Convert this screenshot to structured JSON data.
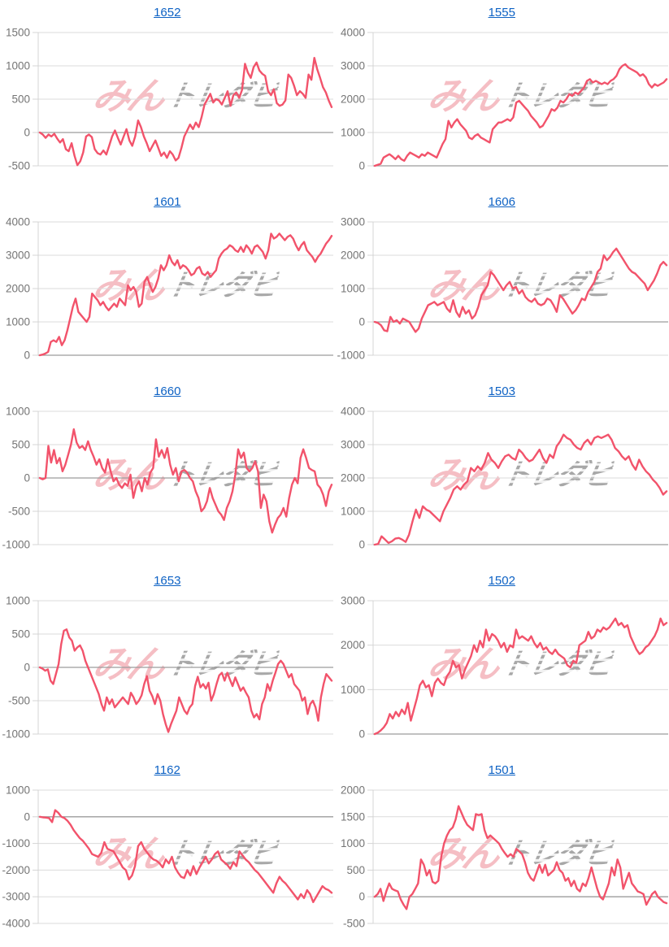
{
  "page": {
    "background": "#ffffff"
  },
  "colors": {
    "series_line": "#F2536B",
    "title_link": "#0E62C4",
    "tick_label": "#757575",
    "gridline": "#DBDBDB",
    "zero_line": "#9C9C9C",
    "axis_line": "#D4D4D4",
    "watermark_pink": "rgba(231,92,108,0.40)",
    "watermark_gray": "#8A8A8A"
  },
  "watermark": {
    "pink_text": "みん",
    "gray_text": "トレダビ"
  },
  "chart_data": [
    {
      "id": "1652",
      "type": "line",
      "title": "1652",
      "ylim": [
        -500,
        1500
      ],
      "yticks": [
        1500,
        1000,
        500,
        0,
        -500
      ],
      "grid": true,
      "legend": "none",
      "x_tick_labels": "none",
      "values": [
        0,
        -30,
        -80,
        -30,
        -60,
        -20,
        -90,
        -150,
        -100,
        -250,
        -280,
        -160,
        -350,
        -490,
        -430,
        -300,
        -60,
        -30,
        -70,
        -250,
        -310,
        -330,
        -270,
        -330,
        -200,
        -60,
        30,
        -80,
        -180,
        -60,
        50,
        -120,
        -200,
        -60,
        180,
        80,
        -60,
        -160,
        -280,
        -200,
        -120,
        -230,
        -350,
        -300,
        -380,
        -280,
        -330,
        -420,
        -380,
        -230,
        -60,
        30,
        120,
        50,
        150,
        80,
        230,
        420,
        500,
        580,
        450,
        500,
        480,
        420,
        520,
        620,
        400,
        560,
        600,
        520,
        640,
        1030,
        900,
        820,
        980,
        1050,
        930,
        880,
        850,
        620,
        560,
        650,
        440,
        400,
        420,
        480,
        870,
        820,
        700,
        560,
        620,
        580,
        520,
        870,
        790,
        1120,
        950,
        820,
        680,
        600,
        480,
        380
      ]
    },
    {
      "id": "1555",
      "type": "line",
      "title": "1555",
      "ylim": [
        0,
        4000
      ],
      "yticks": [
        4000,
        3000,
        2000,
        1000,
        0
      ],
      "grid": true,
      "legend": "none",
      "x_tick_labels": "none",
      "values": [
        0,
        30,
        60,
        250,
        300,
        350,
        280,
        200,
        300,
        200,
        150,
        300,
        400,
        350,
        300,
        250,
        350,
        300,
        400,
        350,
        300,
        250,
        450,
        650,
        800,
        1350,
        1150,
        1300,
        1400,
        1250,
        1150,
        1050,
        850,
        800,
        900,
        950,
        850,
        800,
        750,
        700,
        1100,
        1200,
        1300,
        1300,
        1350,
        1400,
        1350,
        1450,
        1900,
        1950,
        1850,
        1750,
        1650,
        1500,
        1400,
        1300,
        1150,
        1200,
        1350,
        1500,
        1700,
        1650,
        1750,
        1950,
        1900,
        2000,
        2150,
        2100,
        2200,
        2150,
        2250,
        2350,
        2550,
        2600,
        2500,
        2550,
        2500,
        2450,
        2500,
        2450,
        2550,
        2600,
        2700,
        2900,
        3000,
        3050,
        2950,
        2900,
        2850,
        2800,
        2700,
        2750,
        2650,
        2450,
        2350,
        2450,
        2400,
        2450,
        2500,
        2600
      ]
    },
    {
      "id": "1601",
      "type": "line",
      "title": "1601",
      "ylim": [
        0,
        4000
      ],
      "yticks": [
        4000,
        3000,
        2000,
        1000,
        0
      ],
      "grid": true,
      "legend": "none",
      "x_tick_labels": "none",
      "values": [
        0,
        20,
        50,
        100,
        400,
        450,
        400,
        550,
        300,
        450,
        750,
        1100,
        1450,
        1700,
        1300,
        1200,
        1100,
        1000,
        1150,
        1850,
        1750,
        1650,
        1500,
        1600,
        1450,
        1350,
        1450,
        1550,
        1450,
        1700,
        1600,
        1500,
        2100,
        1950,
        2050,
        1900,
        1450,
        1550,
        2200,
        2350,
        2100,
        1900,
        2050,
        2300,
        2700,
        2550,
        2700,
        3000,
        2800,
        2700,
        2850,
        2600,
        2700,
        2650,
        2550,
        2400,
        2450,
        2600,
        2650,
        2450,
        2400,
        2500,
        2350,
        2450,
        2550,
        2900,
        3050,
        3150,
        3200,
        3300,
        3250,
        3150,
        3100,
        3250,
        3100,
        3300,
        3200,
        3050,
        3250,
        3300,
        3200,
        3100,
        2900,
        3150,
        3650,
        3500,
        3550,
        3650,
        3550,
        3450,
        3550,
        3600,
        3500,
        3300,
        3150,
        3300,
        3400,
        3150,
        3050,
        2950,
        2800,
        2950,
        3050,
        3200,
        3350,
        3450,
        3580
      ]
    },
    {
      "id": "1606",
      "type": "line",
      "title": "1606",
      "ylim": [
        -1000,
        3000
      ],
      "yticks": [
        3000,
        2000,
        1000,
        0,
        -1000
      ],
      "grid": true,
      "legend": "none",
      "x_tick_labels": "none",
      "values": [
        0,
        -30,
        -100,
        -250,
        -280,
        150,
        0,
        50,
        -50,
        100,
        50,
        0,
        -150,
        -300,
        -200,
        100,
        300,
        500,
        550,
        600,
        500,
        550,
        600,
        400,
        300,
        650,
        300,
        150,
        450,
        250,
        350,
        100,
        200,
        450,
        800,
        950,
        1100,
        1500,
        1400,
        1250,
        1100,
        950,
        1100,
        1200,
        1000,
        1050,
        850,
        950,
        750,
        650,
        600,
        700,
        550,
        500,
        550,
        700,
        650,
        500,
        300,
        800,
        700,
        550,
        400,
        250,
        350,
        500,
        700,
        650,
        900,
        1050,
        1200,
        1500,
        1600,
        2000,
        1850,
        1950,
        2100,
        2200,
        2050,
        1900,
        1750,
        1600,
        1500,
        1450,
        1350,
        1250,
        1150,
        950,
        1100,
        1250,
        1450,
        1700,
        1800,
        1700
      ]
    },
    {
      "id": "1660",
      "type": "line",
      "title": "1660",
      "ylim": [
        -1000,
        1000
      ],
      "yticks": [
        1000,
        500,
        0,
        -500,
        -1000
      ],
      "grid": true,
      "legend": "none",
      "x_tick_labels": "none",
      "values": [
        0,
        -20,
        0,
        480,
        230,
        420,
        220,
        300,
        100,
        200,
        350,
        500,
        730,
        530,
        450,
        480,
        420,
        550,
        420,
        320,
        200,
        280,
        150,
        80,
        280,
        100,
        -50,
        0,
        -100,
        -150,
        -80,
        -120,
        50,
        -300,
        -120,
        -50,
        -200,
        0,
        -100,
        80,
        150,
        580,
        320,
        420,
        300,
        450,
        200,
        50,
        150,
        -50,
        100,
        120,
        80,
        0,
        -50,
        -200,
        -300,
        -500,
        -450,
        -350,
        -150,
        -300,
        -400,
        -500,
        -550,
        -630,
        -450,
        -350,
        -200,
        50,
        430,
        300,
        380,
        150,
        100,
        150,
        250,
        100,
        -450,
        -250,
        -350,
        -650,
        -820,
        -700,
        -600,
        -550,
        -450,
        -580,
        -300,
        -100,
        0,
        -80,
        300,
        430,
        300,
        150,
        120,
        100,
        -100,
        -150,
        -250,
        -420,
        -200,
        -100
      ]
    },
    {
      "id": "1503",
      "type": "line",
      "title": "1503",
      "ylim": [
        0,
        4000
      ],
      "yticks": [
        4000,
        3000,
        2000,
        1000,
        0
      ],
      "grid": true,
      "legend": "none",
      "x_tick_labels": "none",
      "values": [
        0,
        20,
        250,
        150,
        50,
        100,
        180,
        200,
        150,
        80,
        300,
        700,
        1050,
        800,
        1150,
        1050,
        1000,
        900,
        800,
        700,
        1000,
        1200,
        1400,
        1650,
        1750,
        1650,
        1800,
        1900,
        2300,
        2200,
        2350,
        2250,
        2450,
        2750,
        2550,
        2450,
        2300,
        2500,
        2650,
        2700,
        2600,
        2550,
        2850,
        2750,
        2600,
        2500,
        2550,
        2700,
        2850,
        2600,
        2450,
        2700,
        2600,
        2950,
        3100,
        3300,
        3200,
        3150,
        3000,
        2900,
        2850,
        3050,
        3150,
        3000,
        3200,
        3250,
        3200,
        3250,
        3300,
        3150,
        2900,
        2800,
        2650,
        2550,
        2650,
        2400,
        2250,
        2550,
        2350,
        2200,
        2100,
        1950,
        1850,
        1700,
        1500,
        1600
      ]
    },
    {
      "id": "1653",
      "type": "line",
      "title": "1653",
      "ylim": [
        -1000,
        1000
      ],
      "yticks": [
        1000,
        500,
        0,
        -500,
        -1000
      ],
      "grid": true,
      "legend": "none",
      "x_tick_labels": "none",
      "values": [
        0,
        -20,
        -50,
        -30,
        -200,
        -250,
        -100,
        50,
        350,
        550,
        570,
        450,
        400,
        250,
        300,
        330,
        250,
        100,
        0,
        -100,
        -200,
        -300,
        -400,
        -550,
        -650,
        -450,
        -550,
        -480,
        -600,
        -550,
        -500,
        -450,
        -500,
        -550,
        -380,
        -450,
        -550,
        -500,
        -420,
        -250,
        -130,
        -350,
        -430,
        -550,
        -400,
        -500,
        -700,
        -850,
        -970,
        -850,
        -750,
        -650,
        -450,
        -550,
        -650,
        -700,
        -600,
        -550,
        -280,
        -140,
        -300,
        -250,
        -320,
        -230,
        -500,
        -400,
        -250,
        -120,
        -80,
        -200,
        -80,
        -180,
        -280,
        -150,
        -250,
        -350,
        -300,
        -380,
        -450,
        -650,
        -750,
        -700,
        -780,
        -550,
        -450,
        -250,
        -350,
        -200,
        -80,
        50,
        100,
        50,
        -50,
        -150,
        -100,
        -250,
        -300,
        -350,
        -500,
        -450,
        -700,
        -550,
        -500,
        -600,
        -800,
        -450,
        -250,
        -100,
        -150,
        -200
      ]
    },
    {
      "id": "1502",
      "type": "line",
      "title": "1502",
      "ylim": [
        0,
        3000
      ],
      "yticks": [
        3000,
        2000,
        1000,
        0
      ],
      "grid": true,
      "legend": "none",
      "x_tick_labels": "none",
      "values": [
        0,
        30,
        80,
        150,
        250,
        450,
        350,
        500,
        400,
        550,
        450,
        700,
        300,
        550,
        800,
        1100,
        1200,
        1050,
        1100,
        850,
        1150,
        1250,
        1150,
        1100,
        1300,
        1400,
        1650,
        1500,
        1550,
        1250,
        1450,
        1600,
        1750,
        2000,
        1850,
        2100,
        1950,
        2350,
        2100,
        2250,
        2200,
        2100,
        1950,
        2050,
        1850,
        2000,
        1950,
        2350,
        2150,
        2200,
        2150,
        2100,
        2200,
        2050,
        1950,
        2050,
        1900,
        1950,
        1850,
        1800,
        1900,
        1800,
        1750,
        1700,
        1550,
        1500,
        1650,
        1600,
        2000,
        2050,
        2100,
        2300,
        2150,
        2200,
        2350,
        2300,
        2400,
        2350,
        2400,
        2500,
        2600,
        2450,
        2500,
        2400,
        2450,
        2200,
        2050,
        1900,
        1800,
        1850,
        1950,
        2000,
        2100,
        2200,
        2350,
        2600,
        2450,
        2500
      ]
    },
    {
      "id": "1162",
      "type": "line",
      "title": "1162",
      "ylim": [
        -4000,
        1000
      ],
      "yticks": [
        1000,
        0,
        -1000,
        -2000,
        -3000,
        -4000
      ],
      "grid": true,
      "legend": "none",
      "x_tick_labels": "none",
      "values": [
        0,
        -20,
        -30,
        -50,
        -200,
        250,
        150,
        0,
        -50,
        -150,
        -300,
        -500,
        -650,
        -800,
        -900,
        -1050,
        -1200,
        -1400,
        -1450,
        -1500,
        -1350,
        -950,
        -1200,
        -1250,
        -1300,
        -1500,
        -1700,
        -1900,
        -2000,
        -2350,
        -2200,
        -1850,
        -1100,
        -950,
        -1200,
        -1350,
        -1500,
        -1600,
        -1650,
        -1750,
        -1900,
        -1600,
        -1750,
        -1500,
        -1900,
        -2100,
        -2250,
        -2300,
        -2000,
        -2200,
        -1850,
        -2150,
        -1900,
        -1700,
        -1500,
        -1750,
        -1600,
        -1400,
        -1300,
        -1600,
        -1700,
        -1800,
        -1950,
        -1700,
        -1850,
        -1300,
        -1450,
        -1600,
        -1700,
        -1850,
        -2000,
        -2100,
        -2250,
        -2400,
        -2550,
        -2700,
        -2850,
        -2500,
        -2250,
        -2400,
        -2500,
        -2650,
        -2800,
        -2950,
        -3100,
        -2900,
        -3050,
        -2750,
        -2900,
        -3200,
        -3000,
        -2800,
        -2600,
        -2700,
        -2750,
        -2850
      ]
    },
    {
      "id": "1501",
      "type": "line",
      "title": "1501",
      "ylim": [
        -500,
        2000
      ],
      "yticks": [
        2000,
        1500,
        1000,
        500,
        0,
        -500
      ],
      "grid": true,
      "legend": "none",
      "x_tick_labels": "none",
      "values": [
        0,
        50,
        150,
        -80,
        100,
        250,
        150,
        120,
        100,
        -50,
        -150,
        -230,
        0,
        50,
        150,
        250,
        700,
        600,
        400,
        500,
        280,
        250,
        300,
        750,
        1000,
        1150,
        1250,
        1300,
        1450,
        1700,
        1580,
        1450,
        1350,
        1300,
        1250,
        1550,
        1530,
        1550,
        1250,
        1100,
        1150,
        1100,
        1050,
        1000,
        900,
        820,
        750,
        800,
        750,
        900,
        850,
        800,
        650,
        450,
        350,
        300,
        450,
        600,
        450,
        600,
        400,
        450,
        500,
        650,
        500,
        450,
        300,
        350,
        200,
        300,
        150,
        100,
        250,
        200,
        350,
        550,
        350,
        150,
        0,
        -50,
        100,
        250,
        550,
        400,
        700,
        550,
        150,
        300,
        450,
        250,
        180,
        100,
        80,
        50,
        -150,
        -50,
        50,
        100,
        0,
        -50,
        -100,
        -120
      ]
    }
  ]
}
